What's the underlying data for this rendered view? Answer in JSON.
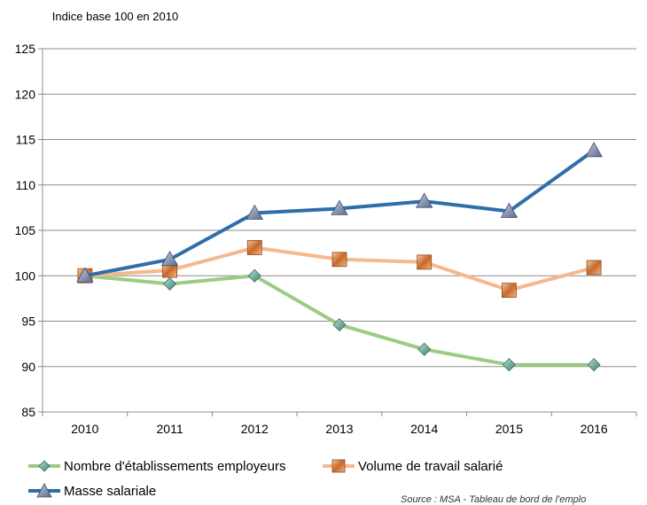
{
  "chart_data": {
    "type": "line",
    "ylabel": "Indice base 100 en 2010",
    "ylim": [
      85,
      125
    ],
    "yticks": [
      85,
      90,
      95,
      100,
      105,
      110,
      115,
      120,
      125
    ],
    "categories": [
      "2010",
      "2011",
      "2012",
      "2013",
      "2014",
      "2015",
      "2016"
    ],
    "grid": true,
    "legend_position": "bottom",
    "series": [
      {
        "name": "Nombre d'établissements employeurs",
        "color": "#9ccb83",
        "marker": "diamond",
        "values": [
          100,
          99.1,
          100,
          94.6,
          91.9,
          90.2,
          90.2
        ]
      },
      {
        "name": "Volume de travail salarié",
        "color": "#f5b98b",
        "marker": "square",
        "values": [
          100,
          100.6,
          103.1,
          101.8,
          101.5,
          98.4,
          100.9
        ]
      },
      {
        "name": "Masse salariale",
        "color": "#2f6eaa",
        "marker": "triangle",
        "values": [
          100,
          101.8,
          106.9,
          107.4,
          108.2,
          107.1,
          113.8
        ]
      }
    ],
    "source": "Source : MSA - Tableau de bord de l'emplo"
  }
}
